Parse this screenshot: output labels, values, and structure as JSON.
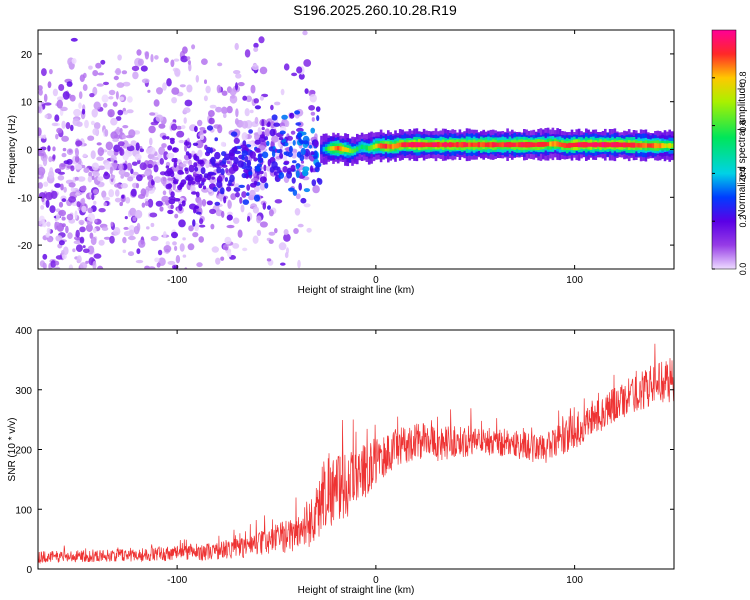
{
  "page_title": "S196.2025.260.10.28.R19",
  "chart_data": [
    {
      "type": "heatmap",
      "xlabel": "Height of straight line (km)",
      "ylabel": "Frequency (Hz)",
      "xlim": [
        -170,
        150
      ],
      "ylim": [
        -25,
        25
      ],
      "xticks": [
        -100,
        0,
        100
      ],
      "yticks": [
        -20,
        -10,
        0,
        10,
        20
      ],
      "grid": false,
      "colorbar": {
        "label": "Normalized spectral amplitude",
        "range": [
          0,
          1
        ],
        "ticks": [
          0.0,
          0.2,
          0.4,
          0.6,
          0.8
        ],
        "tick_labels": [
          "0.0",
          "0.2",
          "0.4",
          "0.6",
          "0.8"
        ]
      },
      "ridge": {
        "description": "spectral ridge frequency vs height",
        "x": [
          -28,
          -24,
          -20,
          -16,
          -12,
          -8,
          -4,
          0,
          4,
          8,
          12,
          20,
          40,
          60,
          80,
          90,
          95,
          100,
          120,
          140,
          150
        ],
        "freq": [
          0.0,
          0.2,
          0.3,
          0.0,
          -0.4,
          0.6,
          0.2,
          0.8,
          0.7,
          0.6,
          1.0,
          1.0,
          1.0,
          1.0,
          1.0,
          1.2,
          0.8,
          1.0,
          1.0,
          0.8,
          0.8
        ],
        "amplitude": [
          0.3,
          0.7,
          0.9,
          0.8,
          0.6,
          0.5,
          0.6,
          0.8,
          0.9,
          0.85,
          0.9,
          0.95,
          0.9,
          0.9,
          0.92,
          0.8,
          0.9,
          0.95,
          0.95,
          0.85,
          0.7
        ]
      },
      "noise_region": {
        "description": "scattered low amplitude noise blobs",
        "x_range": [
          -170,
          -30
        ],
        "freq_range": [
          -25,
          25
        ],
        "typical_amplitude": [
          0.0,
          0.3
        ]
      }
    },
    {
      "type": "line",
      "xlabel": "Height of straight line (km)",
      "ylabel": "SNR (10 * v/v)",
      "xlim": [
        -170,
        150
      ],
      "ylim": [
        0,
        400
      ],
      "xticks": [
        -100,
        0,
        100
      ],
      "yticks": [
        0,
        100,
        200,
        300,
        400
      ],
      "grid": false,
      "series": [
        {
          "name": "SNR",
          "color": "#ee3333",
          "description": "noisy SNR trend vs height",
          "x": [
            -170,
            -140,
            -110,
            -80,
            -60,
            -50,
            -40,
            -30,
            -25,
            -20,
            -10,
            0,
            10,
            20,
            30,
            50,
            70,
            85,
            100,
            120,
            140,
            150
          ],
          "y": [
            20,
            22,
            25,
            30,
            40,
            50,
            60,
            90,
            140,
            130,
            150,
            180,
            200,
            215,
            210,
            215,
            210,
            200,
            230,
            275,
            310,
            315
          ],
          "noise_amplitude": [
            10,
            10,
            12,
            15,
            20,
            25,
            30,
            50,
            70,
            60,
            50,
            40,
            35,
            30,
            30,
            25,
            25,
            25,
            30,
            30,
            35,
            35
          ]
        }
      ]
    }
  ]
}
